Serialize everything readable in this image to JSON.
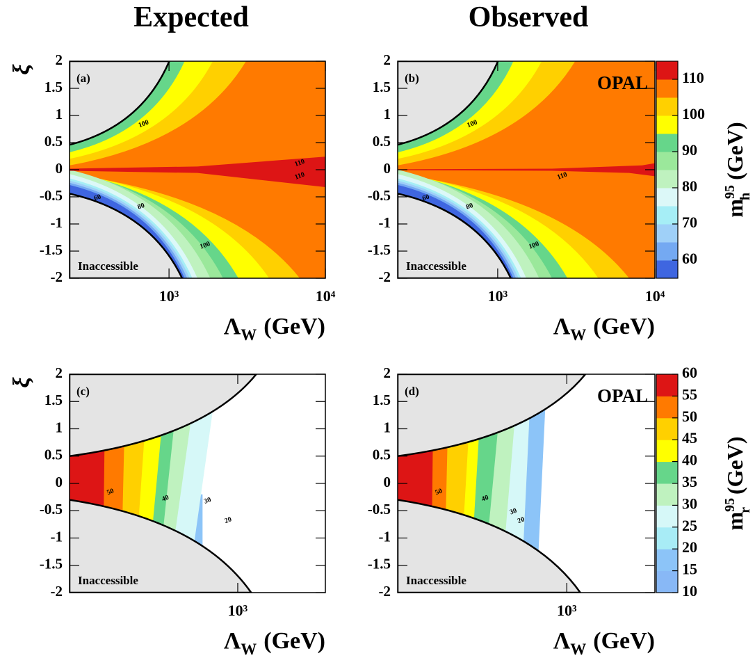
{
  "column_titles": [
    "Expected",
    "Observed"
  ],
  "chart_data": [
    {
      "type": "contour",
      "panel_label": "(a)",
      "xlabel": {
        "symbol": "Λ",
        "subscript": "W",
        "unit": "(GeV)"
      },
      "ylabel": "ξ",
      "xscale": "log",
      "xlim": [
        231,
        10000
      ],
      "xticks": [
        {
          "value": 1000,
          "label": "10³"
        },
        {
          "value": 10000,
          "label": "10⁴"
        }
      ],
      "ylim": [
        -2,
        2
      ],
      "yticks": [
        -2,
        -1.5,
        -1,
        -0.5,
        0,
        0.5,
        1,
        1.5,
        2
      ],
      "annotations": [
        "Inaccessible"
      ],
      "contour_labels": [
        110,
        110,
        100,
        60,
        80,
        100
      ]
    },
    {
      "type": "contour",
      "panel_label": "(b)",
      "xlabel": {
        "symbol": "Λ",
        "subscript": "W",
        "unit": "(GeV)"
      },
      "ylabel": "ξ",
      "xscale": "log",
      "xlim": [
        231,
        10000
      ],
      "xticks": [
        {
          "value": 1000,
          "label": "10³"
        },
        {
          "value": 10000,
          "label": "10⁴"
        }
      ],
      "ylim": [
        -2,
        2
      ],
      "yticks": [
        -2,
        -1.5,
        -1,
        -0.5,
        0,
        0.5,
        1,
        1.5,
        2
      ],
      "annotations": [
        "Inaccessible",
        "OPAL"
      ],
      "contour_labels": [
        100,
        110,
        60,
        80,
        100
      ],
      "colorbar": {
        "label": {
          "symbol": "m",
          "superscript": "95",
          "subscript": "h",
          "unit": "(GeV)"
        },
        "zlim": [
          55,
          115
        ],
        "zticks": [
          60,
          70,
          80,
          90,
          100,
          110
        ],
        "colors": [
          "#3f66e0",
          "#74a9f2",
          "#9fd0f8",
          "#a6eef6",
          "#dcf8f8",
          "#bff2bf",
          "#9be89b",
          "#66d68a",
          "#ffff00",
          "#ffd000",
          "#ff7a00",
          "#dd1515"
        ]
      }
    },
    {
      "type": "contour",
      "panel_label": "(c)",
      "xlabel": {
        "symbol": "Λ",
        "subscript": "W",
        "unit": "(GeV)"
      },
      "ylabel": "ξ",
      "xscale": "log",
      "xlim": [
        220,
        2200
      ],
      "xticks": [
        {
          "value": 1000,
          "label": "10³"
        }
      ],
      "ylim": [
        -2,
        2
      ],
      "yticks": [
        -2,
        -1.5,
        -1,
        -0.5,
        0,
        0.5,
        1,
        1.5,
        2
      ],
      "annotations": [
        "Inaccessible"
      ],
      "contour_labels": [
        50,
        40,
        30,
        20
      ]
    },
    {
      "type": "contour",
      "panel_label": "(d)",
      "xlabel": {
        "symbol": "Λ",
        "subscript": "W",
        "unit": "(GeV)"
      },
      "ylabel": "ξ",
      "xscale": "log",
      "xlim": [
        220,
        2200
      ],
      "xticks": [
        {
          "value": 1000,
          "label": "10³"
        }
      ],
      "ylim": [
        -2,
        2
      ],
      "yticks": [
        -2,
        -1.5,
        -1,
        -0.5,
        0,
        0.5,
        1,
        1.5,
        2
      ],
      "annotations": [
        "Inaccessible",
        "OPAL"
      ],
      "contour_labels": [
        50,
        40,
        30,
        20
      ],
      "colorbar": {
        "label": {
          "symbol": "m",
          "superscript": "95",
          "subscript": "r",
          "unit": "(GeV)"
        },
        "zlim": [
          10,
          60
        ],
        "zticks": [
          10,
          15,
          20,
          25,
          30,
          35,
          40,
          45,
          50,
          55,
          60
        ],
        "colors": [
          "#88b8f6",
          "#8cc4f8",
          "#a8ecf6",
          "#d6f8f8",
          "#bff2bf",
          "#66d68a",
          "#ffff00",
          "#ffd000",
          "#ff7a00",
          "#dd1515"
        ]
      }
    }
  ]
}
